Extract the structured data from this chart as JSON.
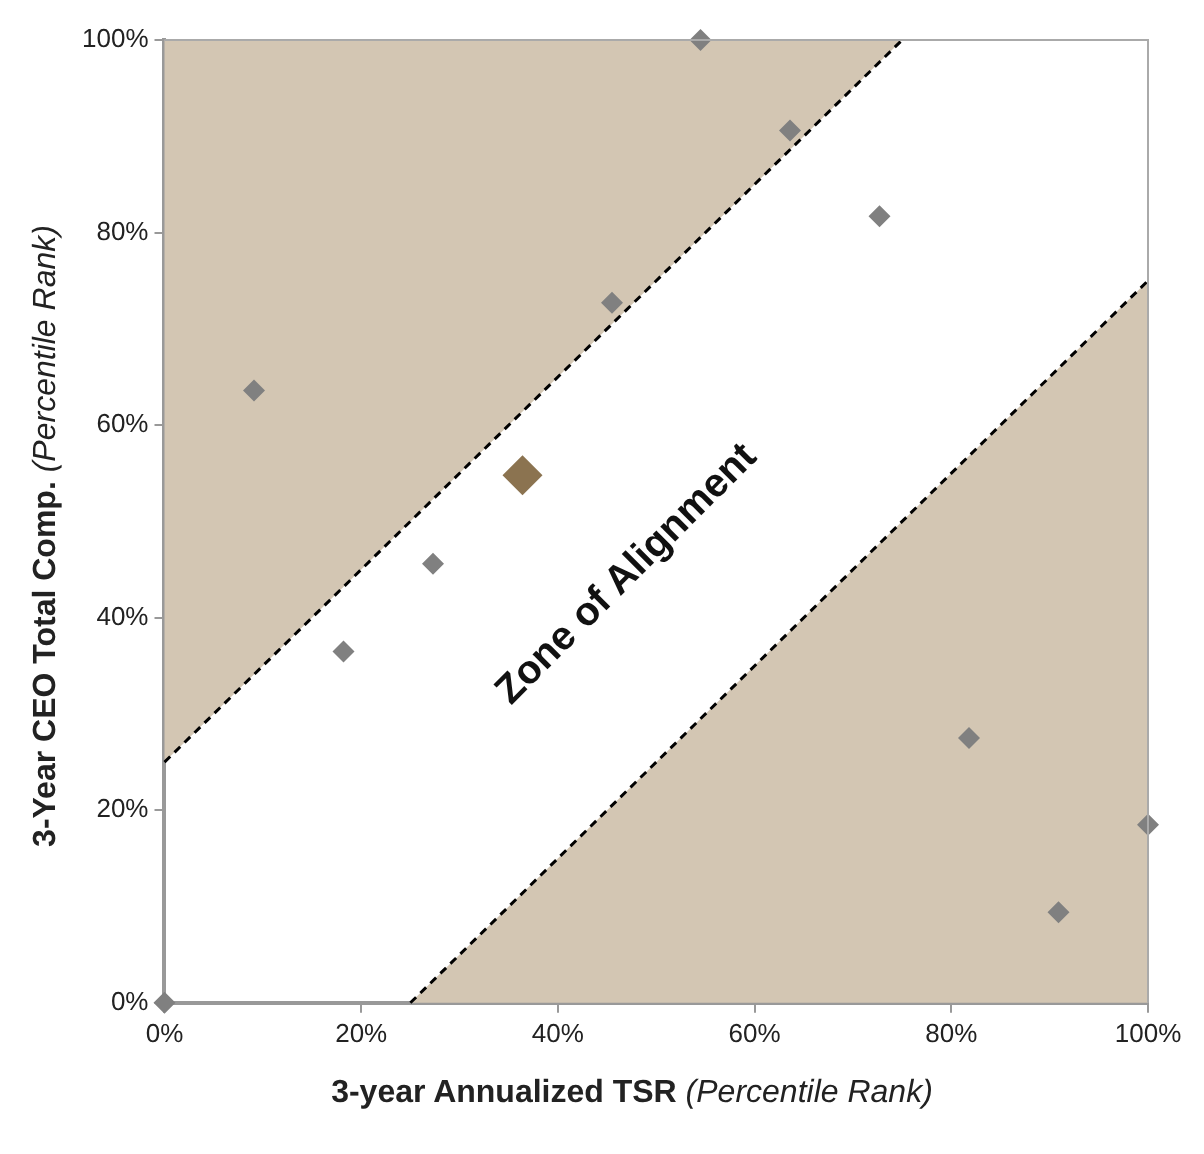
{
  "chart_data": {
    "type": "scatter",
    "xlabel": "3-year Annualized TSR (Percentile Rank)",
    "ylabel": "3-Year CEO Total Comp. (Percentile Rank)",
    "marker": "diamond",
    "grid": false,
    "legend": false,
    "xlim": [
      0,
      100
    ],
    "ylim": [
      0,
      100
    ],
    "xticks": [
      {
        "value": 0,
        "label": "0%"
      },
      {
        "value": 20,
        "label": "20%"
      },
      {
        "value": 40,
        "label": "40%"
      },
      {
        "value": 60,
        "label": "60%"
      },
      {
        "value": 80,
        "label": "80%"
      },
      {
        "value": 100,
        "label": "100%"
      }
    ],
    "yticks": [
      {
        "value": 0,
        "label": "0%"
      },
      {
        "value": 20,
        "label": "20%"
      },
      {
        "value": 40,
        "label": "40%"
      },
      {
        "value": 60,
        "label": "60%"
      },
      {
        "value": 80,
        "label": "80%"
      },
      {
        "value": 100,
        "label": "100%"
      }
    ],
    "series": [
      {
        "type": "line",
        "line_style": "dashed",
        "marker": "none",
        "color": "#000000",
        "x": [
          0,
          75
        ],
        "values": [
          25,
          100
        ],
        "lower": [
          25,
          100
        ],
        "upper": [
          100,
          100
        ]
      },
      {
        "type": "line",
        "line_style": "dashed",
        "marker": "none",
        "color": "#000000",
        "x": [
          25,
          100
        ],
        "values": [
          0,
          75
        ],
        "lower": [
          0,
          0
        ],
        "upper": [
          0,
          75
        ]
      },
      {
        "type": "scatter",
        "color": "#808080",
        "x": [
          0,
          9.1,
          18.2,
          27.3,
          45.5,
          54.5,
          63.6,
          72.7,
          81.8,
          90.9,
          100
        ],
        "values": [
          0,
          63.6,
          36.5,
          45.6,
          72.7,
          100,
          90.6,
          81.7,
          27.5,
          9.4,
          18.5
        ]
      },
      {
        "type": "scatter",
        "color": "#8b7350",
        "x": [
          36.4
        ],
        "values": [
          54.8
        ]
      }
    ],
    "annotations": [
      "Zone of Alignment"
    ]
  }
}
